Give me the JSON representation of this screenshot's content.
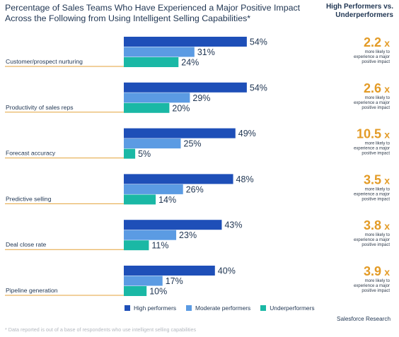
{
  "title": "Percentage of Sales Teams Who Have Experienced a Major Positive Impact Across the Following from Using Intelligent Selling Capabilities*",
  "ratio_header": "High Performers vs. Underperformers",
  "ratio_caption_lines": [
    "more likely to",
    "experience a major",
    "positive impact"
  ],
  "ratio_suffix": "x",
  "source": "Salesforce Research",
  "footnote": "* Data reported is out of a base of respondents who use intelligent selling capabilities",
  "colors": {
    "high": "#1e4fb8",
    "moderate": "#5b9be3",
    "under": "#1ab8a5",
    "accent": "#e39b26",
    "rule": "#e3a23a"
  },
  "chart_data": {
    "type": "bar",
    "orientation": "horizontal",
    "categories": [
      "Customer/prospect nurturing",
      "Productivity of sales reps",
      "Forecast accuracy",
      "Predictive selling",
      "Deal close rate",
      "Pipeline generation"
    ],
    "series": [
      {
        "name": "High performers",
        "values": [
          54,
          54,
          49,
          48,
          43,
          40
        ]
      },
      {
        "name": "Moderate performers",
        "values": [
          31,
          29,
          25,
          26,
          23,
          17
        ]
      },
      {
        "name": "Underperformers",
        "values": [
          24,
          20,
          5,
          14,
          11,
          10
        ]
      }
    ],
    "value_suffix": "%",
    "ratios": [
      "2.2",
      "2.6",
      "10.5",
      "3.5",
      "3.8",
      "3.9"
    ],
    "xlim": [
      0,
      55
    ],
    "legend_position": "bottom"
  }
}
